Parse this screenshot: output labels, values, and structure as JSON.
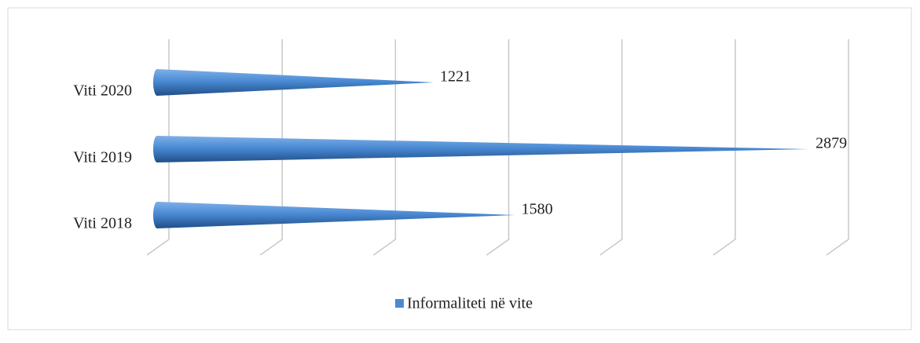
{
  "chart_data": {
    "type": "cone-bar",
    "categories": [
      "Viti 2018",
      "Viti 2019",
      "Viti 2020"
    ],
    "series": [
      {
        "name": "Informaliteti në vite",
        "color": "#4a8ad4",
        "values": [
          1580,
          2879,
          1221
        ]
      }
    ],
    "xlim": [
      0,
      3000
    ],
    "xticks": [
      0,
      500,
      1000,
      1500,
      2000,
      2500,
      3000
    ],
    "grid": true,
    "data_labels": true,
    "legend": "bottom"
  }
}
